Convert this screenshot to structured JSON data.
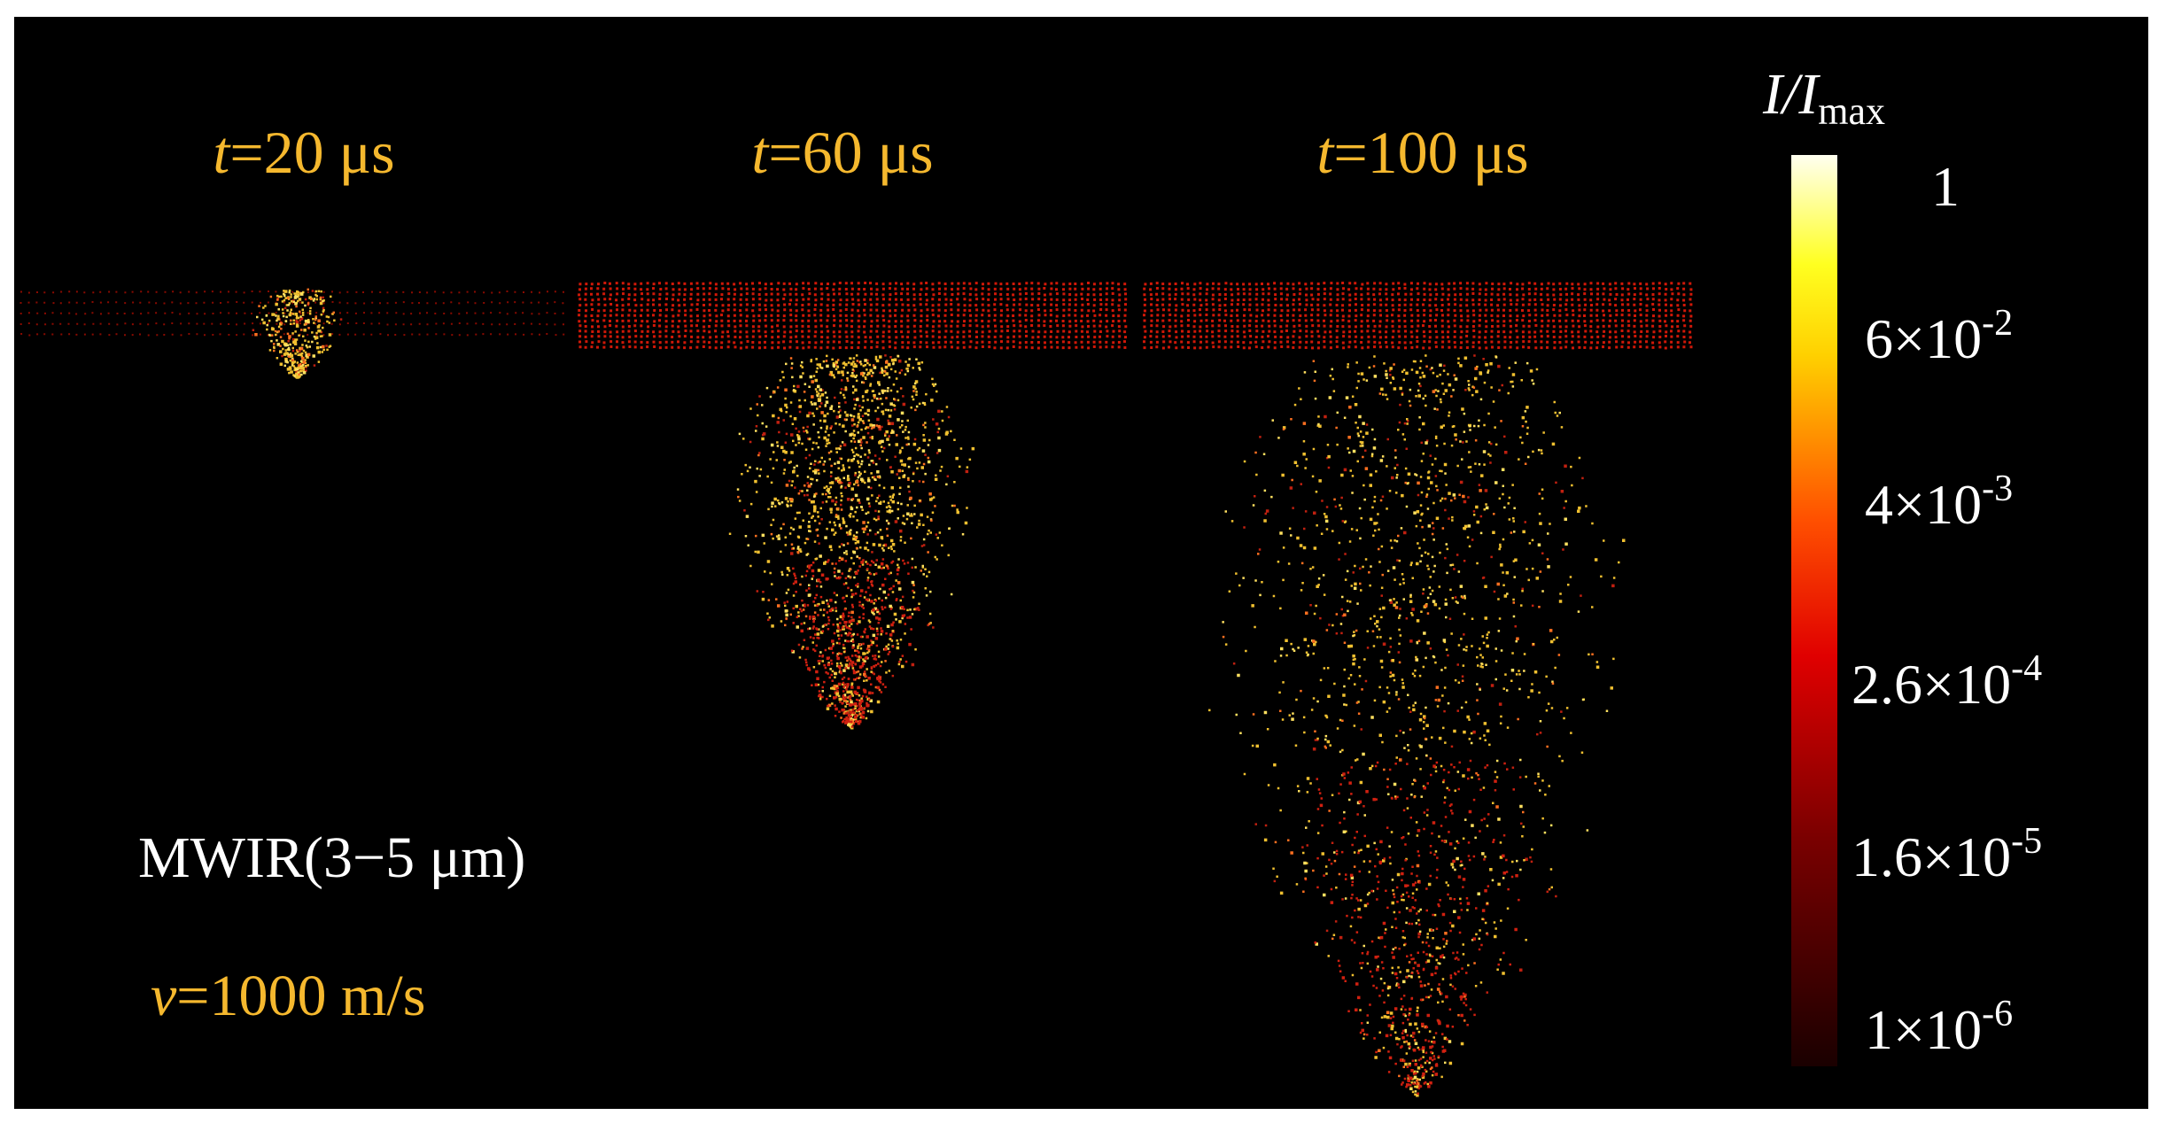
{
  "panels": [
    {
      "time": {
        "var": "t",
        "rest": "=20 μs"
      }
    },
    {
      "time": {
        "var": "t",
        "rest": "=60 μs"
      }
    },
    {
      "time": {
        "var": "t",
        "rest": "=100 μs"
      }
    }
  ],
  "colorbar": {
    "title": {
      "main": "I/I",
      "sub": "max"
    },
    "ticks": [
      {
        "base": "1"
      },
      {
        "base": "6×10",
        "exp": "-2"
      },
      {
        "base": "4×10",
        "exp": "-3"
      },
      {
        "base": "2.6×10",
        "exp": "-4"
      },
      {
        "base": "1.6×10",
        "exp": "-5"
      },
      {
        "base": "1×10",
        "exp": "-6"
      }
    ]
  },
  "band": "MWIR(3−5 μm)",
  "velocity": {
    "var": "v",
    "rest": "=1000 m/s"
  }
}
